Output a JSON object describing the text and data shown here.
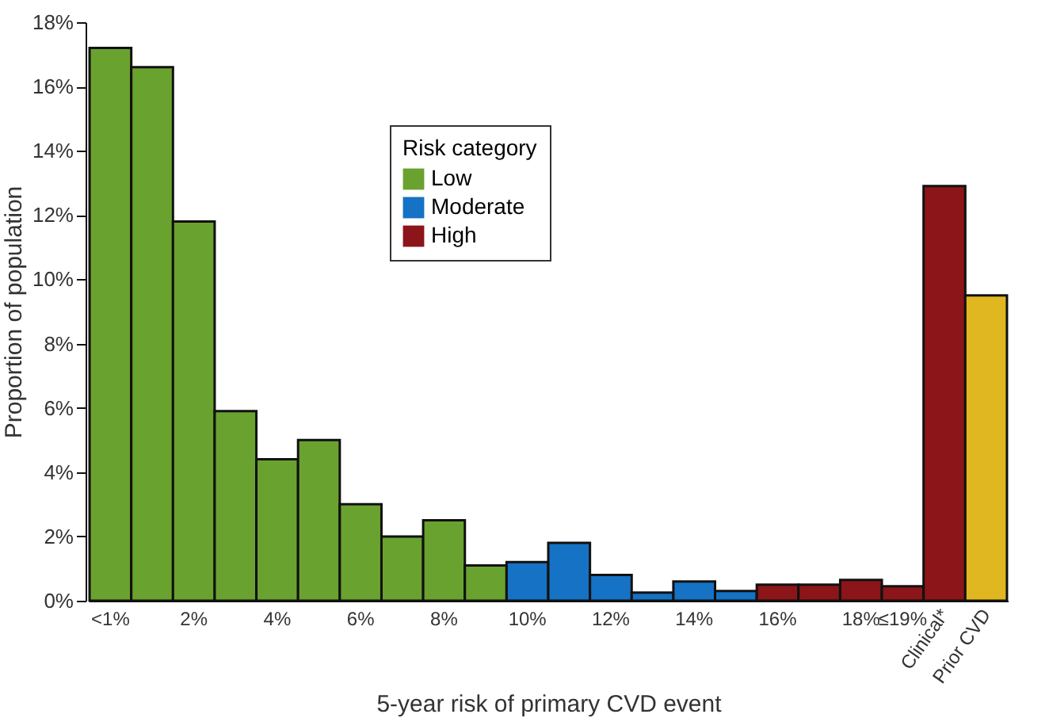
{
  "chart_data": {
    "type": "bar",
    "xlabel": "5-year risk of primary CVD event",
    "ylabel": "Proportion of population",
    "categories": [
      "<1%",
      null,
      "2%",
      null,
      "4%",
      null,
      "6%",
      null,
      "8%",
      null,
      "10%",
      null,
      "12%",
      null,
      "14%",
      null,
      "16%",
      null,
      "18%",
      "≤19%",
      "Clinical*",
      "Prior CVD"
    ],
    "series": [
      {
        "name": "Low",
        "color": "#6aa22f",
        "values": [
          17.2,
          16.6,
          11.8,
          5.9,
          4.4,
          5.0,
          3.0,
          2.0,
          2.5,
          1.1,
          null,
          null,
          null,
          null,
          null,
          null,
          null,
          null,
          null,
          null,
          null,
          null
        ]
      },
      {
        "name": "Moderate",
        "color": "#1572c4",
        "values": [
          null,
          null,
          null,
          null,
          null,
          null,
          null,
          null,
          null,
          null,
          1.2,
          1.8,
          0.8,
          0.25,
          0.6,
          0.3,
          null,
          null,
          null,
          null,
          null,
          null
        ]
      },
      {
        "name": "High",
        "color": "#8b1518",
        "values": [
          null,
          null,
          null,
          null,
          null,
          null,
          null,
          null,
          null,
          null,
          null,
          null,
          null,
          null,
          null,
          null,
          0.5,
          0.5,
          0.65,
          0.45,
          12.9,
          null
        ]
      },
      {
        "color": "#e0b720",
        "values": [
          null,
          null,
          null,
          null,
          null,
          null,
          null,
          null,
          null,
          null,
          null,
          null,
          null,
          null,
          null,
          null,
          null,
          null,
          null,
          null,
          null,
          9.5
        ]
      }
    ],
    "legend_title": "Risk category",
    "legend": "top",
    "ylim": [
      0,
      18
    ],
    "yticks": [
      {
        "value": 0,
        "label": "0%"
      },
      {
        "value": 2,
        "label": "2%"
      },
      {
        "value": 4,
        "label": "4%"
      },
      {
        "value": 6,
        "label": "6%"
      },
      {
        "value": 8,
        "label": "8%"
      },
      {
        "value": 10,
        "label": "10%"
      },
      {
        "value": 12,
        "label": "12%"
      },
      {
        "value": 14,
        "label": "14%"
      },
      {
        "value": 16,
        "label": "16%"
      },
      {
        "value": 18,
        "label": "18%"
      }
    ],
    "grid": false
  }
}
